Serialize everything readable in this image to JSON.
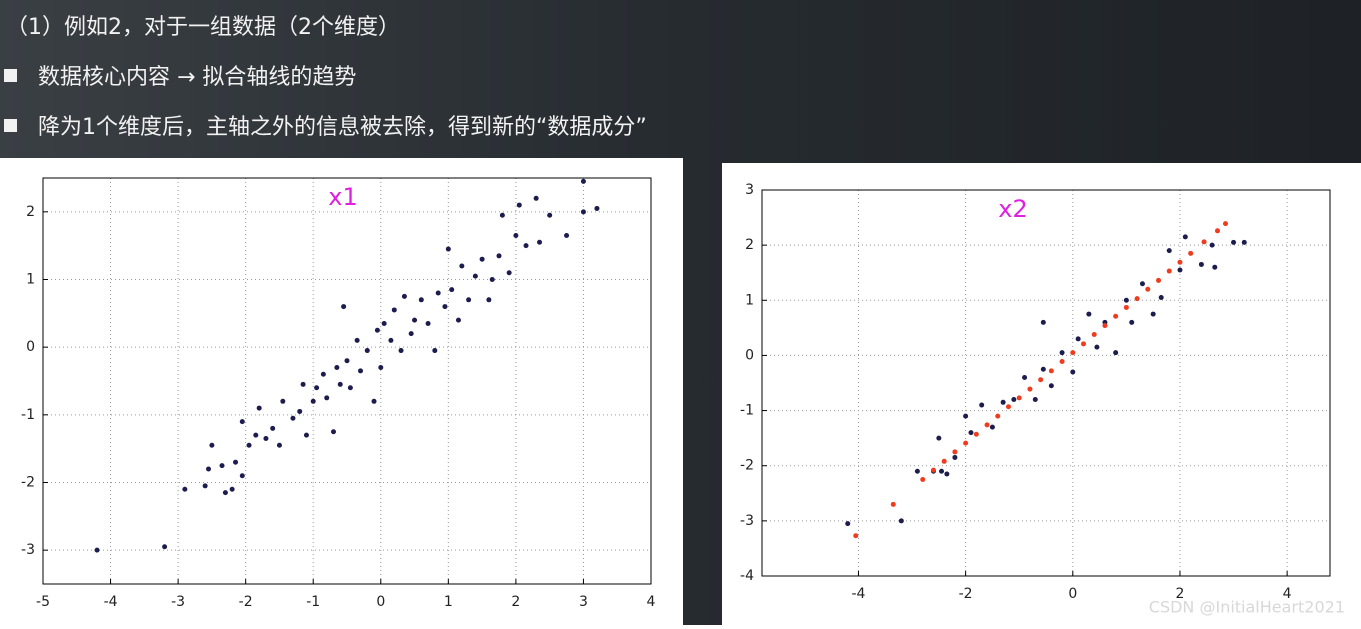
{
  "header": {
    "title": "（1）例如2，对于一组数据（2个维度）",
    "bullets": [
      "数据核心内容 → 拟合轴线的趋势",
      "降为1个维度后，主轴之外的信息被去除，得到新的“数据成分”"
    ]
  },
  "chart_data": [
    {
      "type": "scatter",
      "annotation": "x1",
      "xlim": [
        -5,
        4
      ],
      "ylim": [
        -3.5,
        2.5
      ],
      "xticks": [
        -5,
        -4,
        -3,
        -2,
        -1,
        0,
        1,
        2,
        3,
        4
      ],
      "yticks": [
        -3,
        -2,
        -1,
        0,
        1,
        2
      ],
      "grid": true,
      "series": [
        {
          "color": "#1c1c4e",
          "x": [
            -4.2,
            -3.2,
            -2.9,
            -2.6,
            -2.55,
            -2.5,
            -2.35,
            -2.3,
            -2.2,
            -2.15,
            -2.05,
            -2.05,
            -1.95,
            -1.85,
            -1.8,
            -1.7,
            -1.6,
            -1.5,
            -1.45,
            -1.3,
            -1.2,
            -1.15,
            -1.1,
            -1.0,
            -0.95,
            -0.85,
            -0.8,
            -0.7,
            -0.65,
            -0.6,
            -0.55,
            -0.5,
            -0.45,
            -0.35,
            -0.3,
            -0.2,
            -0.1,
            -0.05,
            0.0,
            0.05,
            0.15,
            0.2,
            0.3,
            0.35,
            0.45,
            0.5,
            0.6,
            0.7,
            0.8,
            0.85,
            0.95,
            1.0,
            1.05,
            1.15,
            1.2,
            1.3,
            1.4,
            1.5,
            1.6,
            1.65,
            1.75,
            1.8,
            1.9,
            2.0,
            2.05,
            2.15,
            2.3,
            2.35,
            2.5,
            2.75,
            3.0,
            3.0,
            3.2
          ],
          "y": [
            -3.0,
            -2.95,
            -2.1,
            -2.05,
            -1.8,
            -1.45,
            -1.75,
            -2.15,
            -2.1,
            -1.7,
            -1.9,
            -1.1,
            -1.45,
            -1.3,
            -0.9,
            -1.35,
            -1.2,
            -1.45,
            -0.8,
            -1.05,
            -0.95,
            -0.55,
            -1.3,
            -0.8,
            -0.6,
            -0.4,
            -0.75,
            -1.25,
            -0.3,
            -0.55,
            0.6,
            -0.2,
            -0.6,
            0.1,
            -0.35,
            -0.05,
            -0.8,
            0.25,
            -0.3,
            0.35,
            0.1,
            0.55,
            -0.05,
            0.75,
            0.2,
            0.4,
            0.7,
            0.35,
            -0.05,
            0.8,
            0.6,
            1.45,
            0.85,
            0.4,
            1.2,
            0.7,
            1.05,
            1.3,
            0.7,
            1.0,
            1.35,
            1.95,
            1.1,
            1.65,
            2.1,
            1.5,
            2.2,
            1.55,
            1.95,
            1.65,
            2.45,
            2.0,
            2.05
          ]
        }
      ]
    },
    {
      "type": "scatter",
      "annotation": "x2",
      "xlim": [
        -5.8,
        4.8
      ],
      "ylim": [
        -4,
        3
      ],
      "xticks": [
        -4,
        -2,
        0,
        2,
        4
      ],
      "yticks": [
        -4,
        -3,
        -2,
        -1,
        0,
        1,
        2,
        3
      ],
      "grid": true,
      "series": [
        {
          "color": "#1c1c4e",
          "x": [
            -4.2,
            -3.2,
            -2.9,
            -2.6,
            -2.5,
            -2.45,
            -2.35,
            -2.2,
            -2.0,
            -1.9,
            -1.7,
            -1.5,
            -1.3,
            -1.1,
            -0.9,
            -0.7,
            -0.55,
            -0.55,
            -0.4,
            -0.2,
            0.0,
            0.1,
            0.3,
            0.45,
            0.6,
            0.8,
            1.0,
            1.1,
            1.3,
            1.5,
            1.65,
            1.8,
            2.0,
            2.1,
            2.4,
            2.6,
            2.65,
            3.0,
            3.2
          ],
          "y": [
            -3.05,
            -3.0,
            -2.1,
            -2.1,
            -1.5,
            -2.1,
            -2.15,
            -1.85,
            -1.1,
            -1.4,
            -0.9,
            -1.3,
            -0.85,
            -0.8,
            -0.4,
            -0.8,
            -0.25,
            0.6,
            -0.55,
            0.05,
            -0.3,
            0.3,
            0.75,
            0.15,
            0.6,
            0.05,
            1.0,
            0.6,
            1.3,
            0.75,
            1.05,
            1.9,
            1.55,
            2.15,
            1.65,
            2.0,
            1.6,
            2.05,
            2.05
          ]
        },
        {
          "color": "#f03c1e",
          "x": [
            -4.05,
            -3.35,
            -2.8,
            -2.6,
            -2.4,
            -2.2,
            -2.0,
            -1.8,
            -1.6,
            -1.4,
            -1.2,
            -1.0,
            -0.8,
            -0.6,
            -0.4,
            -0.2,
            0,
            0.2,
            0.4,
            0.6,
            0.8,
            1.0,
            1.2,
            1.4,
            1.6,
            1.8,
            2.0,
            2.2,
            2.45,
            2.7,
            2.85
          ],
          "y": [
            -3.27,
            -2.7,
            -2.25,
            -2.08,
            -1.92,
            -1.75,
            -1.59,
            -1.43,
            -1.26,
            -1.1,
            -0.93,
            -0.77,
            -0.61,
            -0.44,
            -0.28,
            -0.11,
            0.05,
            0.21,
            0.38,
            0.54,
            0.71,
            0.87,
            1.03,
            1.2,
            1.36,
            1.53,
            1.69,
            1.85,
            2.06,
            2.26,
            2.39
          ]
        }
      ]
    }
  ],
  "watermark": "CSDN @InitialHeart2021"
}
